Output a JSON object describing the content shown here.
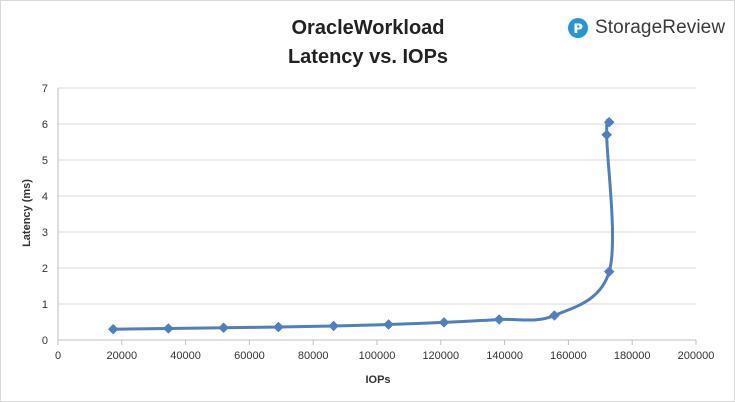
{
  "brand": {
    "name": "StorageReview",
    "accent": "#2a95d4"
  },
  "chart_data": {
    "type": "line",
    "title_line1": "OracleWorkload",
    "title_line2": "Latency vs. IOPs",
    "xlabel": "IOPs",
    "ylabel": "Latency (ms)",
    "xlim": [
      0,
      200000
    ],
    "ylim": [
      0,
      7
    ],
    "x_ticks": [
      "0",
      "20000",
      "40000",
      "60000",
      "80000",
      "100000",
      "120000",
      "140000",
      "160000",
      "180000",
      "200000"
    ],
    "y_ticks": [
      "0",
      "1",
      "2",
      "3",
      "4",
      "5",
      "6",
      "7"
    ],
    "grid": true,
    "series_color": "#4f7fbd",
    "series": [
      {
        "x": [
          17300,
          34600,
          51900,
          69100,
          86400,
          103600,
          121000,
          138300,
          155600,
          172800,
          172000,
          172800
        ],
        "y": [
          0.3,
          0.32,
          0.34,
          0.36,
          0.39,
          0.43,
          0.49,
          0.57,
          0.68,
          1.9,
          5.7,
          6.05
        ]
      }
    ]
  }
}
